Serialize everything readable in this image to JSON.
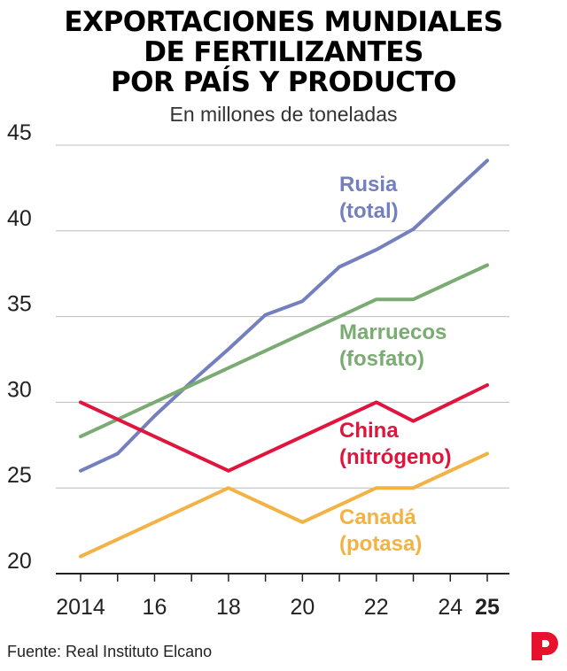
{
  "title_lines": [
    "EXPORTACIONES MUNDIALES",
    "DE FERTILIZANTES",
    "POR PAÍS Y PRODUCTO"
  ],
  "subtitle": "En millones de toneladas",
  "source": "Fuente: Real Instituto Elcano",
  "logo_icon": "p-logo-icon",
  "colors": {
    "logo": "#e8112d",
    "grid": "#bbbbbb",
    "axis": "#222222"
  },
  "chart_data": {
    "type": "line",
    "title": "EXPORTACIONES MUNDIALES DE FERTILIZANTES POR PAÍS Y PRODUCTO",
    "subtitle": "En millones de toneladas",
    "xlabel": "",
    "ylabel": "",
    "ylim": [
      20,
      45
    ],
    "xlim": [
      2014,
      2025
    ],
    "yticks": [
      20,
      25,
      30,
      35,
      40,
      45
    ],
    "xticks": [
      {
        "value": 2014,
        "label": "2014",
        "bold": false
      },
      {
        "value": 2016,
        "label": "16",
        "bold": false
      },
      {
        "value": 2018,
        "label": "18",
        "bold": false
      },
      {
        "value": 2020,
        "label": "20",
        "bold": false
      },
      {
        "value": 2022,
        "label": "22",
        "bold": false
      },
      {
        "value": 2024,
        "label": "24",
        "bold": false
      },
      {
        "value": 2025,
        "label": "25",
        "bold": true
      }
    ],
    "grid": true,
    "legend": "direct labels",
    "series": [
      {
        "key": "rusia",
        "label_lines": [
          "Rusia",
          "(total)"
        ],
        "color": "#7480bd",
        "x": [
          2014,
          2015,
          2016,
          2017,
          2018,
          2019,
          2020,
          2021,
          2022,
          2023,
          2024,
          2025
        ],
        "values": [
          26,
          27,
          29.2,
          31.2,
          33.1,
          35.1,
          35.9,
          37.9,
          38.9,
          40.1,
          42.1,
          44.1
        ]
      },
      {
        "key": "marruecos",
        "label_lines": [
          "Marruecos",
          "(fosfato)"
        ],
        "color": "#7aab72",
        "x": [
          2014,
          2022,
          2023,
          2025
        ],
        "values": [
          28,
          36,
          36,
          38
        ]
      },
      {
        "key": "china",
        "label_lines": [
          "China",
          "(nitrógeno)"
        ],
        "color": "#e0143c",
        "x": [
          2014,
          2018,
          2022,
          2023,
          2025
        ],
        "values": [
          30,
          26,
          30,
          28.9,
          31
        ]
      },
      {
        "key": "canada",
        "label_lines": [
          "Canadá",
          "(potasa)"
        ],
        "color": "#f2b244",
        "x": [
          2014,
          2018,
          2020,
          2022,
          2023,
          2025
        ],
        "values": [
          21,
          25,
          23,
          25,
          25,
          27
        ]
      }
    ]
  }
}
